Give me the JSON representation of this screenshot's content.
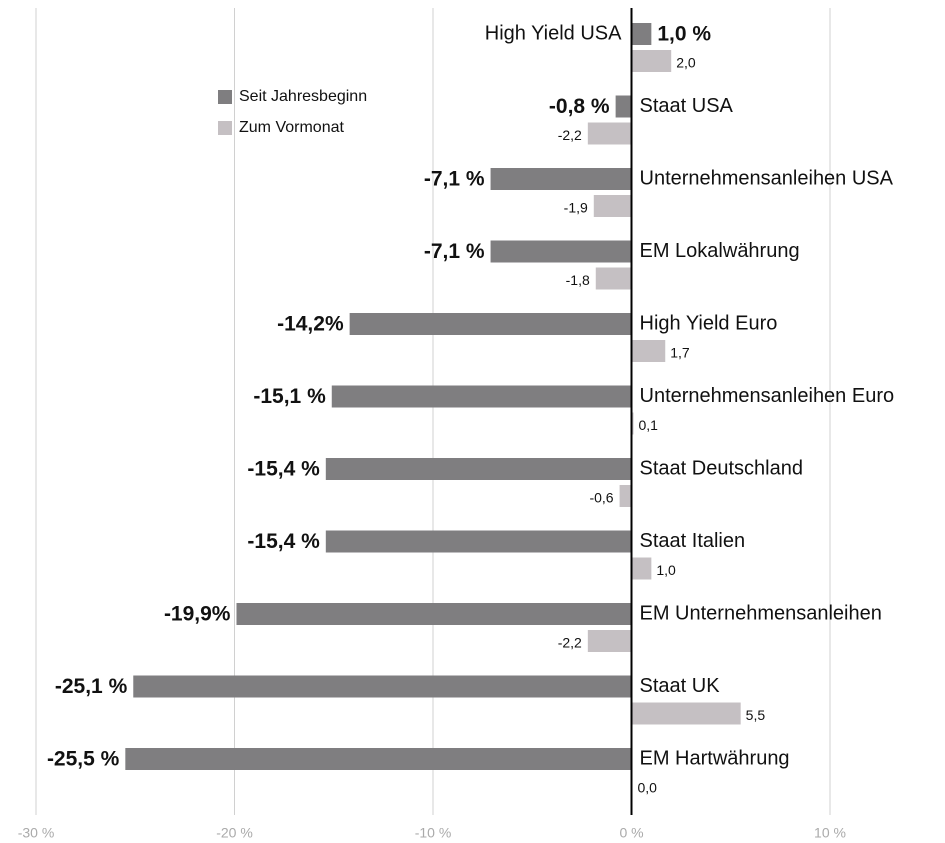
{
  "chart_data": {
    "type": "bar",
    "orientation": "horizontal",
    "categories": [
      "High Yield USA",
      "Staat USA",
      "Unternehmensanleihen USA",
      "EM Lokalwährung",
      "High Yield Euro",
      "Unternehmensanleihen Euro",
      "Staat Deutschland",
      "Staat Italien",
      "EM Unternehmensanleihen",
      "Staat UK",
      "EM Hartwährung"
    ],
    "series": [
      {
        "name": "Seit Jahresbeginn",
        "color": "#7f7e80",
        "values": [
          1.0,
          -0.8,
          -7.1,
          -7.1,
          -14.2,
          -15.1,
          -15.4,
          -15.4,
          -19.9,
          -25.1,
          -25.5
        ],
        "value_labels": [
          "1,0 %",
          "-0,8 %",
          "-7,1 %",
          "-7,1 %",
          "-14,2%",
          "-15,1 %",
          "-15,4 %",
          "-15,4 %",
          "-19,9%",
          "-25,1 %",
          "-25,5 %"
        ]
      },
      {
        "name": "Zum Vormonat",
        "color": "#c5c0c3",
        "values": [
          2.0,
          -2.2,
          -1.9,
          -1.8,
          1.7,
          0.1,
          -0.6,
          1.0,
          -2.2,
          5.5,
          0.0
        ],
        "value_labels": [
          "2,0",
          "-2,2",
          "-1,9",
          "-1,8",
          "1,7",
          "0,1",
          "-0,6",
          "1,0",
          "-2,2",
          "5,5",
          "0,0"
        ]
      }
    ],
    "xlim": [
      -30,
      10
    ],
    "xticks": [
      {
        "value": -30,
        "label": "-30 %"
      },
      {
        "value": -20,
        "label": "-20 %"
      },
      {
        "value": -10,
        "label": "-10 %"
      },
      {
        "value": 0,
        "label": "0 %"
      },
      {
        "value": 10,
        "label": "10 %"
      }
    ],
    "grid": true,
    "legend": "upper left"
  }
}
